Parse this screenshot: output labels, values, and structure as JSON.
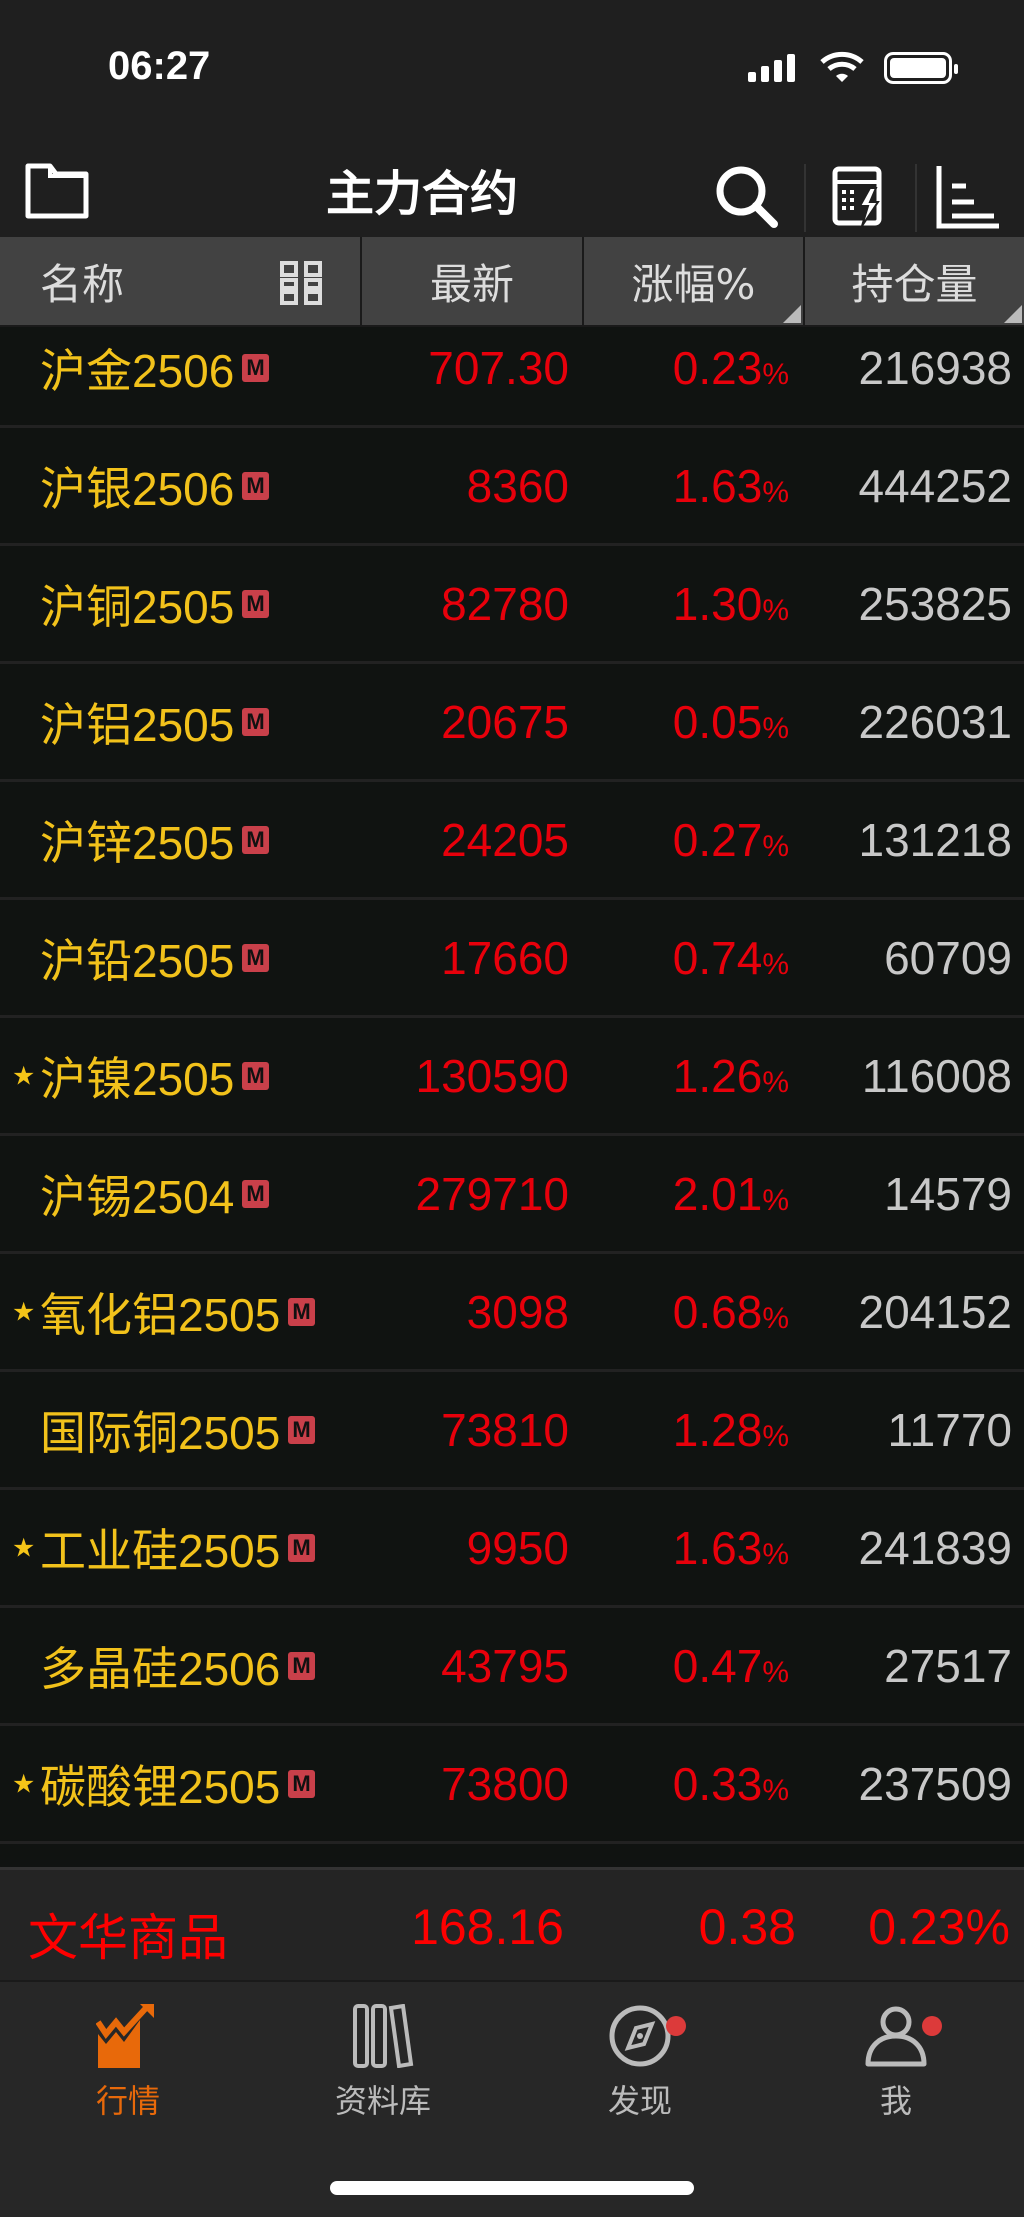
{
  "status_bar": {
    "time": "06:27"
  },
  "nav": {
    "title": "主力合约",
    "icons": [
      "folder-icon",
      "search-icon",
      "calculator-icon",
      "list-settings-icon"
    ]
  },
  "table": {
    "headers": [
      "名称",
      "最新",
      "涨幅%",
      "持仓量"
    ],
    "rows": [
      {
        "name": "沪金2506",
        "starred": false,
        "badge": "M",
        "last": "707.30",
        "change": "0.23",
        "unit": "%",
        "oi": "216938"
      },
      {
        "name": "沪银2506",
        "starred": false,
        "badge": "M",
        "last": "8360",
        "change": "1.63",
        "unit": "%",
        "oi": "444252"
      },
      {
        "name": "沪铜2505",
        "starred": false,
        "badge": "M",
        "last": "82780",
        "change": "1.30",
        "unit": "%",
        "oi": "253825"
      },
      {
        "name": "沪铝2505",
        "starred": false,
        "badge": "M",
        "last": "20675",
        "change": "0.05",
        "unit": "%",
        "oi": "226031"
      },
      {
        "name": "沪锌2505",
        "starred": false,
        "badge": "M",
        "last": "24205",
        "change": "0.27",
        "unit": "%",
        "oi": "131218"
      },
      {
        "name": "沪铅2505",
        "starred": false,
        "badge": "M",
        "last": "17660",
        "change": "0.74",
        "unit": "%",
        "oi": "60709"
      },
      {
        "name": "沪镍2505",
        "starred": true,
        "badge": "M",
        "last": "130590",
        "change": "1.26",
        "unit": "%",
        "oi": "116008"
      },
      {
        "name": "沪锡2504",
        "starred": false,
        "badge": "M",
        "last": "279710",
        "change": "2.01",
        "unit": "%",
        "oi": "14579"
      },
      {
        "name": "氧化铝2505",
        "starred": true,
        "badge": "M",
        "last": "3098",
        "change": "0.68",
        "unit": "%",
        "oi": "204152"
      },
      {
        "name": "国际铜2505",
        "starred": false,
        "badge": "M",
        "last": "73810",
        "change": "1.28",
        "unit": "%",
        "oi": "11770"
      },
      {
        "name": "工业硅2505",
        "starred": true,
        "badge": "M",
        "last": "9950",
        "change": "1.63",
        "unit": "%",
        "oi": "241839"
      },
      {
        "name": "多晶硅2506",
        "starred": false,
        "badge": "M",
        "last": "43795",
        "change": "0.47",
        "unit": "%",
        "oi": "27517"
      },
      {
        "name": "碳酸锂2505",
        "starred": true,
        "badge": "M",
        "last": "73800",
        "change": "0.33",
        "unit": "%",
        "oi": "237509"
      }
    ]
  },
  "summary": {
    "name": "文华商品",
    "last": "168.16",
    "change": "0.38",
    "change_pct": "0.23%"
  },
  "tabs": [
    {
      "label": "行情",
      "active": true
    },
    {
      "label": "资料库",
      "badge": false
    },
    {
      "label": "发现",
      "badge": true
    },
    {
      "label": "我",
      "badge": true
    }
  ],
  "colors": {
    "up": "#e8000b",
    "name": "#f2c21b",
    "active_tab": "#e8690a",
    "badge": "#dc3a3a"
  }
}
